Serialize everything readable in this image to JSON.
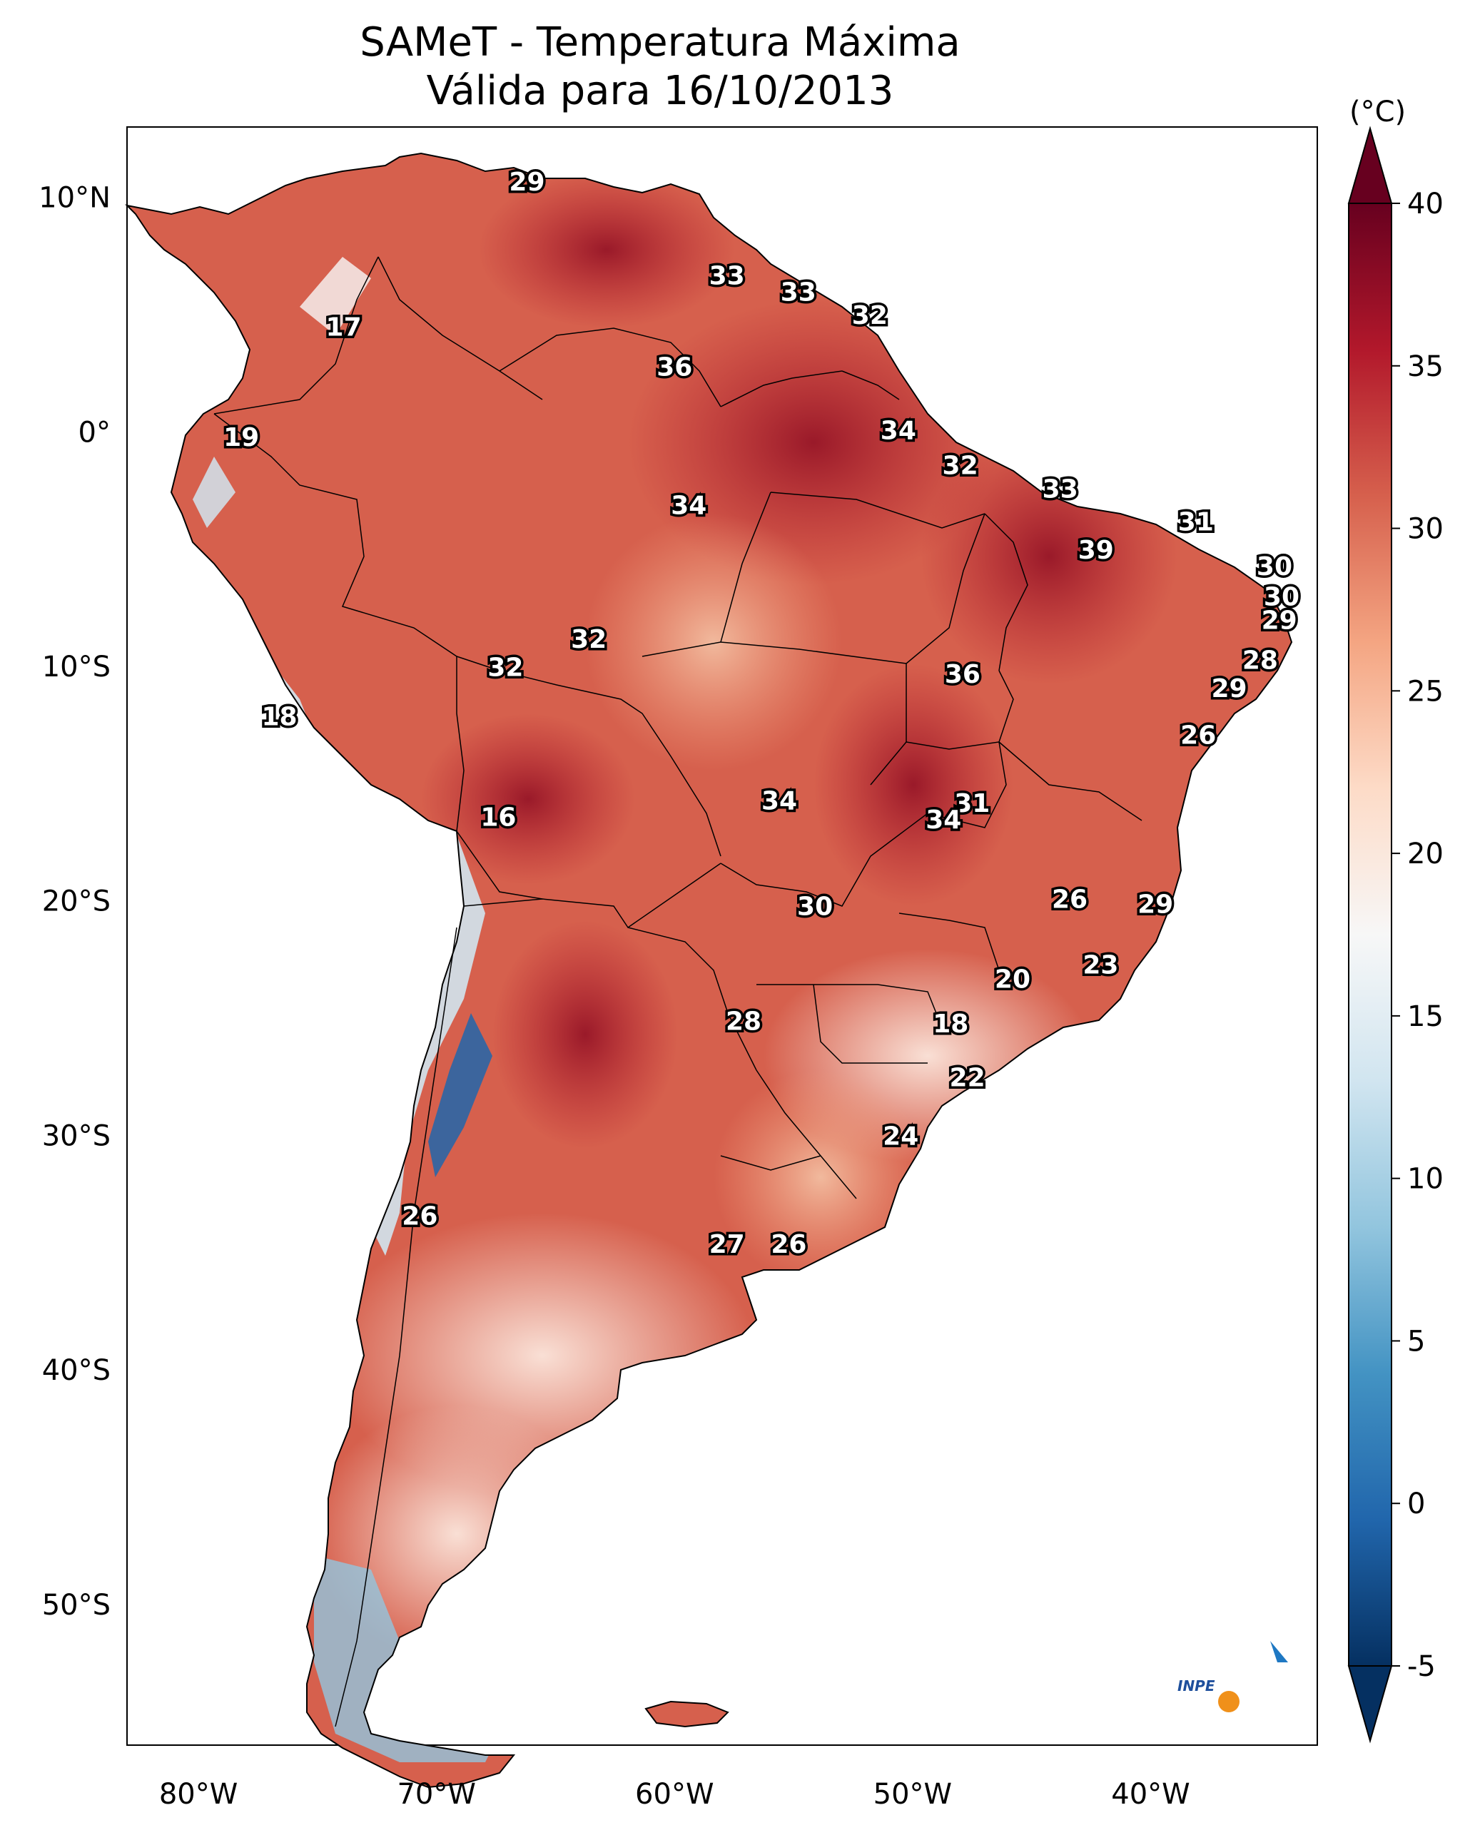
{
  "title_line1": "SAMeT - Temperatura Máxima",
  "title_line2": "Válida para 16/10/2013",
  "colorbar": {
    "unit": "(°C)",
    "ticks": [
      "40",
      "35",
      "30",
      "25",
      "20",
      "15",
      "10",
      "5",
      "0",
      "-5"
    ],
    "tick_values": [
      40,
      35,
      30,
      25,
      20,
      15,
      10,
      5,
      0,
      -5
    ],
    "range": [
      -5,
      40
    ],
    "colors": [
      "#053061",
      "#2166ac",
      "#4393c3",
      "#92c5de",
      "#d1e5f0",
      "#f7f7f7",
      "#fddbc7",
      "#f4a582",
      "#d6604d",
      "#b2182b",
      "#67001f"
    ]
  },
  "axes": {
    "lat_labels": [
      "10°N",
      "0°",
      "10°S",
      "20°S",
      "30°S",
      "40°S",
      "50°S"
    ],
    "lon_labels": [
      "80°W",
      "70°W",
      "60°W",
      "50°W",
      "40°W"
    ]
  },
  "map": {
    "lon_range": [
      -83,
      -33
    ],
    "lat_range": [
      -56,
      13
    ],
    "land_color": "#d6604d"
  },
  "contour_labels": [
    {
      "text": "29",
      "lon": -66.2,
      "lat": 10.6
    },
    {
      "text": "33",
      "lon": -57.8,
      "lat": 6.6
    },
    {
      "text": "33",
      "lon": -54.8,
      "lat": 5.9
    },
    {
      "text": "32",
      "lon": -51.8,
      "lat": 4.9
    },
    {
      "text": "17",
      "lon": -73.9,
      "lat": 4.4
    },
    {
      "text": "36",
      "lon": -60.0,
      "lat": 2.7
    },
    {
      "text": "19",
      "lon": -78.2,
      "lat": -0.3
    },
    {
      "text": "34",
      "lon": -50.6,
      "lat": 0.0
    },
    {
      "text": "32",
      "lon": -48.0,
      "lat": -1.5
    },
    {
      "text": "33",
      "lon": -43.8,
      "lat": -2.5
    },
    {
      "text": "34",
      "lon": -59.4,
      "lat": -3.2
    },
    {
      "text": "31",
      "lon": -38.1,
      "lat": -3.9
    },
    {
      "text": "39",
      "lon": -42.3,
      "lat": -5.1
    },
    {
      "text": "30",
      "lon": -34.8,
      "lat": -5.8
    },
    {
      "text": "30",
      "lon": -34.5,
      "lat": -7.1
    },
    {
      "text": "29",
      "lon": -34.6,
      "lat": -8.1
    },
    {
      "text": "32",
      "lon": -63.6,
      "lat": -8.9
    },
    {
      "text": "28",
      "lon": -35.4,
      "lat": -9.8
    },
    {
      "text": "32",
      "lon": -67.1,
      "lat": -10.1
    },
    {
      "text": "36",
      "lon": -47.9,
      "lat": -10.4
    },
    {
      "text": "29",
      "lon": -36.7,
      "lat": -11.0
    },
    {
      "text": "18",
      "lon": -76.6,
      "lat": -12.2
    },
    {
      "text": "26",
      "lon": -38.0,
      "lat": -13.0
    },
    {
      "text": "34",
      "lon": -55.6,
      "lat": -15.8
    },
    {
      "text": "31",
      "lon": -47.5,
      "lat": -15.9
    },
    {
      "text": "16",
      "lon": -67.4,
      "lat": -16.5
    },
    {
      "text": "34",
      "lon": -48.7,
      "lat": -16.6
    },
    {
      "text": "26",
      "lon": -43.4,
      "lat": -20.0
    },
    {
      "text": "29",
      "lon": -39.8,
      "lat": -20.2
    },
    {
      "text": "30",
      "lon": -54.1,
      "lat": -20.3
    },
    {
      "text": "23",
      "lon": -42.1,
      "lat": -22.8
    },
    {
      "text": "20",
      "lon": -45.8,
      "lat": -23.4
    },
    {
      "text": "28",
      "lon": -57.1,
      "lat": -25.2
    },
    {
      "text": "18",
      "lon": -48.4,
      "lat": -25.3
    },
    {
      "text": "22",
      "lon": -47.7,
      "lat": -27.6
    },
    {
      "text": "24",
      "lon": -50.5,
      "lat": -30.1
    },
    {
      "text": "26",
      "lon": -70.7,
      "lat": -33.5
    },
    {
      "text": "27",
      "lon": -57.8,
      "lat": -34.7
    },
    {
      "text": "26",
      "lon": -55.2,
      "lat": -34.7
    }
  ],
  "logo": {
    "text": "INPE"
  }
}
